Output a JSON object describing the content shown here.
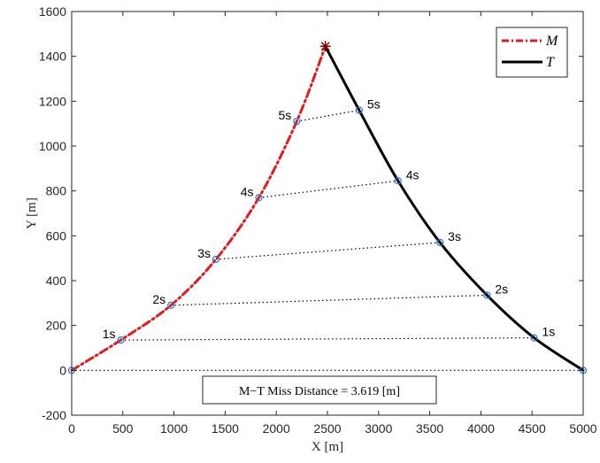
{
  "chart_data": {
    "type": "line",
    "xlabel": "X [m]",
    "ylabel": "Y [m]",
    "xlim": [
      0,
      5000
    ],
    "ylim": [
      -200,
      1600
    ],
    "xticks": [
      "0",
      "500",
      "1000",
      "1500",
      "2000",
      "2500",
      "3000",
      "3500",
      "4000",
      "4500",
      "5000"
    ],
    "yticks": [
      "-200",
      "0",
      "200",
      "400",
      "600",
      "800",
      "1000",
      "1200",
      "1400",
      "1600"
    ],
    "grid": false,
    "legend": {
      "placement": "top-right",
      "entries": [
        "M",
        "T"
      ]
    },
    "series": [
      {
        "name": "M",
        "color": "#e41a1c",
        "style": "dash-dot",
        "x": [
          0,
          480,
          970,
          1410,
          1830,
          2200,
          2480
        ],
        "y": [
          0,
          135,
          290,
          495,
          770,
          1110,
          1445
        ]
      },
      {
        "name": "T",
        "color": "#000000",
        "style": "solid",
        "x": [
          5000,
          4520,
          4060,
          3600,
          3190,
          2810,
          2480
        ],
        "y": [
          0,
          145,
          335,
          570,
          845,
          1160,
          1445
        ]
      }
    ],
    "time_markers": {
      "labels": [
        "1s",
        "2s",
        "3s",
        "4s",
        "5s"
      ],
      "M_x": [
        480,
        970,
        1410,
        1830,
        2200
      ],
      "M_y": [
        135,
        290,
        495,
        770,
        1110
      ],
      "T_x": [
        4520,
        4060,
        3600,
        3190,
        2810
      ],
      "T_y": [
        145,
        335,
        570,
        845,
        1160
      ]
    },
    "intercept": {
      "x": 2480,
      "y": 1445
    },
    "annotation": "M−T Miss Distance = 3.619 [m]"
  }
}
